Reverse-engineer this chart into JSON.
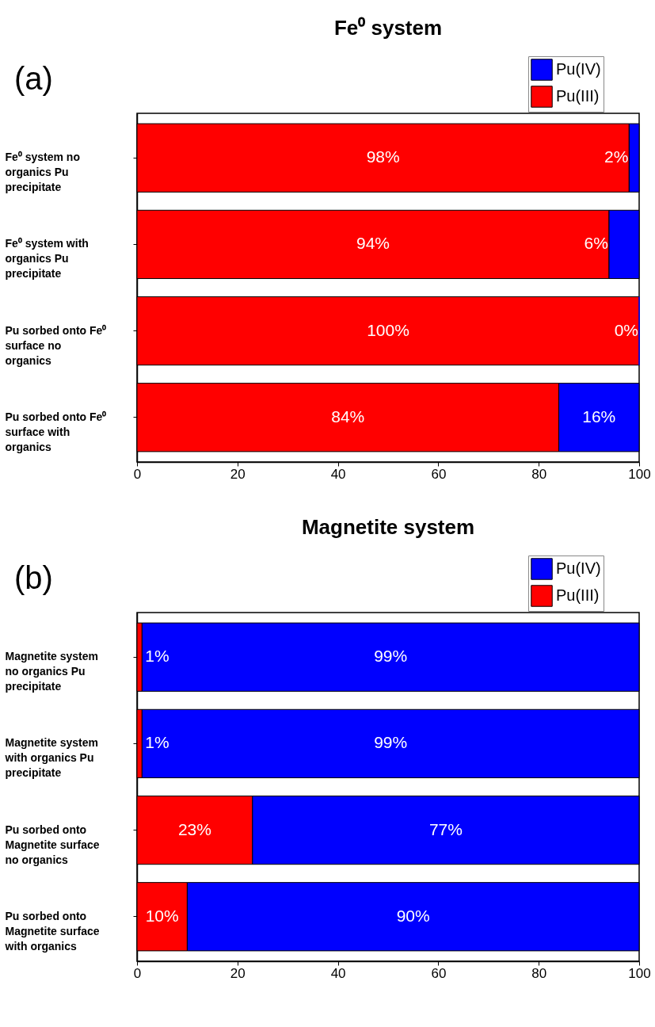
{
  "chart_data": [
    {
      "type": "bar",
      "orientation": "horizontal",
      "stacked": true,
      "title": "Fe⁰ system",
      "annotations": [
        "(a)"
      ],
      "categories": [
        "Fe⁰ system no organics Pu precipitate",
        "Fe⁰ system with organics Pu precipitate",
        "Pu sorbed onto Fe⁰ surface no organics",
        "Pu sorbed onto Fe⁰ surface with organics"
      ],
      "series": [
        {
          "name": "Pu(III)",
          "color": "#ff0000",
          "values": [
            98,
            94,
            100,
            84
          ],
          "value_labels": [
            "98%",
            "94%",
            "100%",
            "84%"
          ]
        },
        {
          "name": "Pu(IV)",
          "color": "#0000ff",
          "values": [
            2,
            6,
            0,
            16
          ],
          "value_labels": [
            "2%",
            "6%",
            "0%",
            "16%"
          ]
        }
      ],
      "xlim": [
        0,
        100
      ],
      "xticks": [
        0,
        20,
        40,
        60,
        80,
        100
      ],
      "grid": false,
      "legend": "top right"
    },
    {
      "type": "bar",
      "orientation": "horizontal",
      "stacked": true,
      "title": "Magnetite system",
      "annotations": [
        "(b)"
      ],
      "categories": [
        "Magnetite system no organics Pu precipitate",
        "Magnetite system with organics Pu precipitate",
        "Pu sorbed onto Magnetite surface no organics",
        "Pu sorbed onto Magnetite surface with organics"
      ],
      "series": [
        {
          "name": "Pu(III)",
          "color": "#ff0000",
          "values": [
            1,
            1,
            23,
            10
          ],
          "value_labels": [
            "1%",
            "1%",
            "23%",
            "10%"
          ]
        },
        {
          "name": "Pu(IV)",
          "color": "#0000ff",
          "values": [
            99,
            99,
            77,
            90
          ],
          "value_labels": [
            "99%",
            "99%",
            "77%",
            "90%"
          ]
        }
      ],
      "xlim": [
        0,
        100
      ],
      "xticks": [
        0,
        20,
        40,
        60,
        80,
        100
      ],
      "grid": false,
      "legend": "top right"
    }
  ]
}
